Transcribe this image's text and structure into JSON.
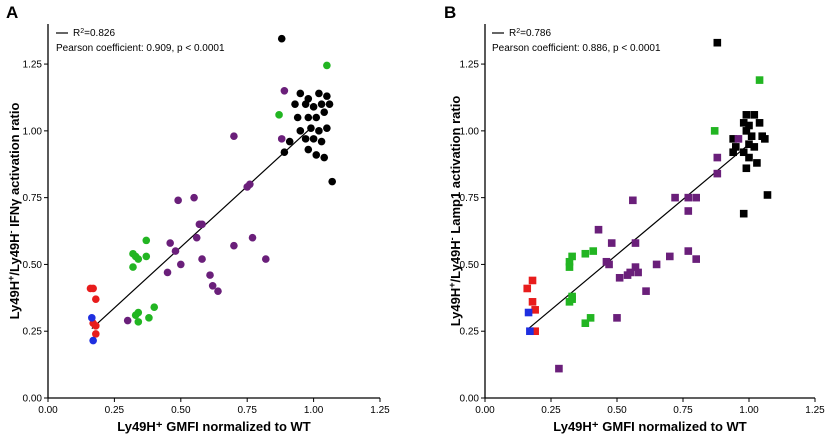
{
  "colors": {
    "black": "#000000",
    "purple": "#6a1f7a",
    "green": "#22b522",
    "red": "#e81c1c",
    "blue": "#1f2fe0"
  },
  "chart_data": [
    {
      "panel": "A",
      "type": "scatter",
      "marker": "circle",
      "xlabel": "Ly49H⁺ GMFI normalized to WT",
      "ylabel_parts": [
        "Ly49H",
        "+",
        "/Ly49H",
        "-",
        " IFNγ activation ratio"
      ],
      "xlim": [
        0,
        1.25
      ],
      "ylim": [
        0,
        1.4
      ],
      "xticks": [
        "0.00",
        "0.25",
        "0.50",
        "0.75",
        "1.00",
        "1.25"
      ],
      "yticks": [
        "0.00",
        "0.25",
        "0.50",
        "0.75",
        "1.00",
        "1.25"
      ],
      "legend": {
        "r2_prefix": "R",
        "r2_sup": "2",
        "r2_value": "=0.826",
        "pearson": "Pearson coefficient: 0.909, p < 0.0001"
      },
      "fit_line": [
        [
          0.165,
          0.26
        ],
        [
          1.0,
          1.02
        ]
      ],
      "series": [
        {
          "name": "black",
          "color": "#000000",
          "points": [
            [
              0.88,
              1.345
            ],
            [
              0.95,
              1.14
            ],
            [
              0.98,
              1.12
            ],
            [
              1.02,
              1.14
            ],
            [
              1.05,
              1.13
            ],
            [
              0.93,
              1.1
            ],
            [
              0.97,
              1.1
            ],
            [
              1.0,
              1.09
            ],
            [
              1.03,
              1.1
            ],
            [
              1.06,
              1.1
            ],
            [
              0.94,
              1.05
            ],
            [
              0.98,
              1.05
            ],
            [
              1.01,
              1.05
            ],
            [
              1.04,
              1.07
            ],
            [
              0.95,
              1.0
            ],
            [
              0.99,
              1.01
            ],
            [
              1.02,
              1.0
            ],
            [
              1.05,
              1.01
            ],
            [
              0.97,
              0.97
            ],
            [
              1.0,
              0.97
            ],
            [
              1.03,
              0.96
            ],
            [
              0.91,
              0.96
            ],
            [
              0.98,
              0.93
            ],
            [
              1.01,
              0.91
            ],
            [
              0.89,
              0.92
            ],
            [
              1.04,
              0.9
            ],
            [
              1.07,
              0.81
            ]
          ]
        },
        {
          "name": "purple",
          "color": "#6a1f7a",
          "points": [
            [
              0.89,
              1.15
            ],
            [
              0.88,
              0.97
            ],
            [
              0.7,
              0.98
            ],
            [
              0.76,
              0.8
            ],
            [
              0.75,
              0.79
            ],
            [
              0.55,
              0.75
            ],
            [
              0.49,
              0.74
            ],
            [
              0.46,
              0.58
            ],
            [
              0.57,
              0.65
            ],
            [
              0.58,
              0.65
            ],
            [
              0.56,
              0.6
            ],
            [
              0.58,
              0.52
            ],
            [
              0.7,
              0.57
            ],
            [
              0.77,
              0.6
            ],
            [
              0.48,
              0.55
            ],
            [
              0.5,
              0.5
            ],
            [
              0.45,
              0.47
            ],
            [
              0.61,
              0.46
            ],
            [
              0.82,
              0.52
            ],
            [
              0.62,
              0.42
            ],
            [
              0.64,
              0.4
            ],
            [
              0.3,
              0.29
            ]
          ]
        },
        {
          "name": "green",
          "color": "#22b522",
          "points": [
            [
              1.05,
              1.245
            ],
            [
              0.87,
              1.06
            ],
            [
              0.37,
              0.59
            ],
            [
              0.32,
              0.54
            ],
            [
              0.33,
              0.53
            ],
            [
              0.34,
              0.52
            ],
            [
              0.32,
              0.49
            ],
            [
              0.37,
              0.53
            ],
            [
              0.4,
              0.34
            ],
            [
              0.34,
              0.32
            ],
            [
              0.33,
              0.31
            ],
            [
              0.38,
              0.3
            ],
            [
              0.34,
              0.285
            ]
          ]
        },
        {
          "name": "red",
          "color": "#e81c1c",
          "points": [
            [
              0.17,
              0.41
            ],
            [
              0.16,
              0.41
            ],
            [
              0.18,
              0.37
            ],
            [
              0.17,
              0.28
            ],
            [
              0.18,
              0.27
            ],
            [
              0.18,
              0.24
            ]
          ]
        },
        {
          "name": "blue",
          "color": "#1f2fe0",
          "points": [
            [
              0.165,
              0.3
            ],
            [
              0.17,
              0.215
            ]
          ]
        }
      ]
    },
    {
      "panel": "B",
      "type": "scatter",
      "marker": "square",
      "xlabel": "Ly49H⁺ GMFI normalized to WT",
      "ylabel_parts": [
        "Ly49H",
        "+",
        "/Ly49H",
        "-",
        " Lamp1 activation ratio"
      ],
      "xlim": [
        0,
        1.25
      ],
      "ylim": [
        0,
        1.4
      ],
      "xticks": [
        "0.00",
        "0.25",
        "0.50",
        "0.75",
        "1.00",
        "1.25"
      ],
      "yticks": [
        "0.00",
        "0.25",
        "0.50",
        "0.75",
        "1.00",
        "1.25"
      ],
      "legend": {
        "r2_prefix": "R",
        "r2_sup": "2",
        "r2_value": "=0.786",
        "pearson": "Pearson coefficient: 0.886, p < 0.0001"
      },
      "fit_line": [
        [
          0.165,
          0.26
        ],
        [
          1.0,
          0.95
        ]
      ],
      "series": [
        {
          "name": "black",
          "color": "#000000",
          "points": [
            [
              0.88,
              1.33
            ],
            [
              0.99,
              1.06
            ],
            [
              1.02,
              1.06
            ],
            [
              0.98,
              1.03
            ],
            [
              1.0,
              1.02
            ],
            [
              1.04,
              1.03
            ],
            [
              0.99,
              1.0
            ],
            [
              1.01,
              0.98
            ],
            [
              1.05,
              0.98
            ],
            [
              1.06,
              0.97
            ],
            [
              0.94,
              0.97
            ],
            [
              0.95,
              0.94
            ],
            [
              1.0,
              0.95
            ],
            [
              1.02,
              0.94
            ],
            [
              0.94,
              0.92
            ],
            [
              0.98,
              0.92
            ],
            [
              1.0,
              0.9
            ],
            [
              1.03,
              0.88
            ],
            [
              0.99,
              0.86
            ],
            [
              1.07,
              0.76
            ],
            [
              0.98,
              0.69
            ]
          ]
        },
        {
          "name": "purple",
          "color": "#6a1f7a",
          "points": [
            [
              0.96,
              0.97
            ],
            [
              0.88,
              0.9
            ],
            [
              0.88,
              0.84
            ],
            [
              0.77,
              0.75
            ],
            [
              0.72,
              0.75
            ],
            [
              0.8,
              0.75
            ],
            [
              0.77,
              0.7
            ],
            [
              0.56,
              0.74
            ],
            [
              0.43,
              0.63
            ],
            [
              0.57,
              0.58
            ],
            [
              0.48,
              0.58
            ],
            [
              0.46,
              0.51
            ],
            [
              0.47,
              0.5
            ],
            [
              0.51,
              0.45
            ],
            [
              0.54,
              0.46
            ],
            [
              0.55,
              0.47
            ],
            [
              0.57,
              0.49
            ],
            [
              0.58,
              0.47
            ],
            [
              0.65,
              0.5
            ],
            [
              0.7,
              0.53
            ],
            [
              0.77,
              0.55
            ],
            [
              0.8,
              0.52
            ],
            [
              0.61,
              0.4
            ],
            [
              0.5,
              0.3
            ],
            [
              0.28,
              0.11
            ]
          ]
        },
        {
          "name": "green",
          "color": "#22b522",
          "points": [
            [
              1.04,
              1.19
            ],
            [
              0.87,
              1.0
            ],
            [
              0.33,
              0.53
            ],
            [
              0.38,
              0.54
            ],
            [
              0.41,
              0.55
            ],
            [
              0.32,
              0.51
            ],
            [
              0.32,
              0.49
            ],
            [
              0.33,
              0.38
            ],
            [
              0.33,
              0.37
            ],
            [
              0.32,
              0.36
            ],
            [
              0.4,
              0.3
            ],
            [
              0.38,
              0.28
            ]
          ]
        },
        {
          "name": "red",
          "color": "#e81c1c",
          "points": [
            [
              0.18,
              0.44
            ],
            [
              0.16,
              0.41
            ],
            [
              0.18,
              0.36
            ],
            [
              0.19,
              0.33
            ],
            [
              0.19,
              0.25
            ]
          ]
        },
        {
          "name": "blue",
          "color": "#1f2fe0",
          "points": [
            [
              0.165,
              0.32
            ],
            [
              0.17,
              0.25
            ]
          ]
        }
      ]
    }
  ]
}
